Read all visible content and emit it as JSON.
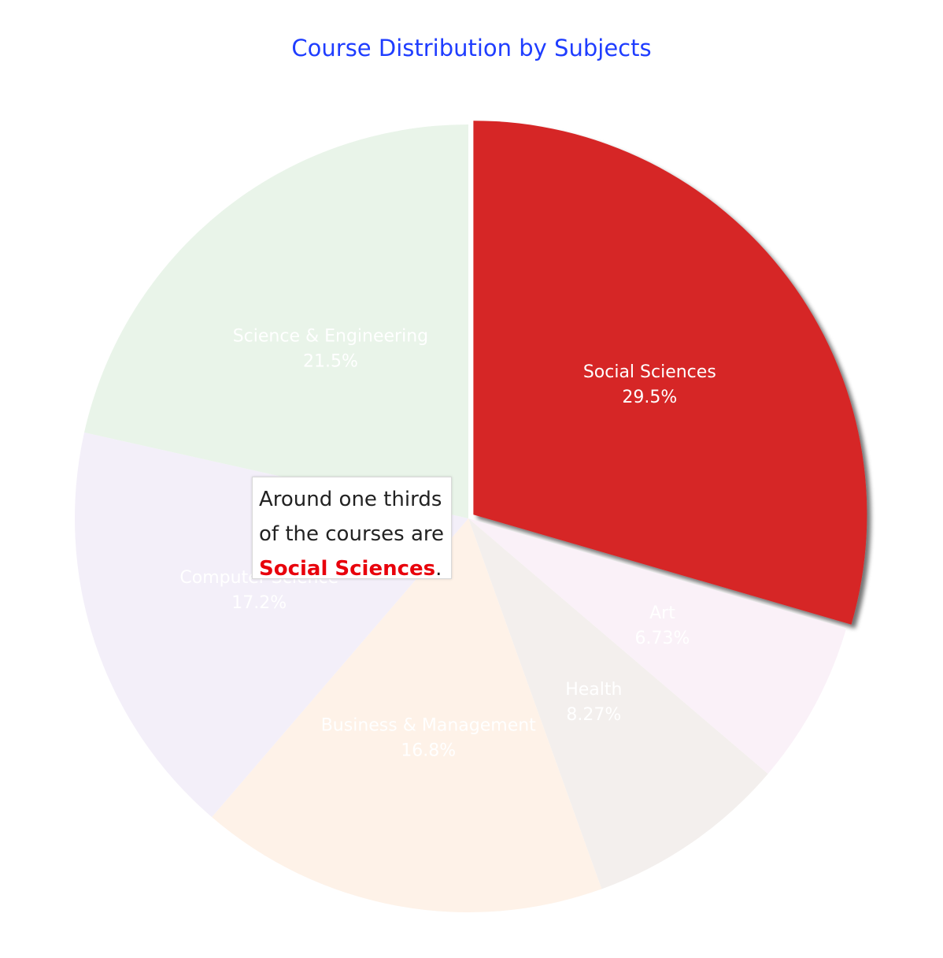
{
  "chart_data": {
    "type": "pie",
    "title": "Course Distribution by Subjects",
    "labels": [
      "Social Sciences",
      "Art",
      "Health",
      "Business & Management",
      "Computer Science",
      "Science & Engineering"
    ],
    "values": [
      29.5,
      6.73,
      8.27,
      16.8,
      17.2,
      21.5
    ],
    "value_labels": [
      "29.5%",
      "6.73%",
      "8.27%",
      "16.8%",
      "17.2%",
      "21.5%"
    ],
    "colors": [
      "#d62728",
      "#faf1f8",
      "#f3efed",
      "#fef2e8",
      "#f3eff9",
      "#e9f4e9"
    ],
    "highlighted": "Social Sciences",
    "start": "12 o'clock, clockwise, highlighted slice pulled out"
  },
  "annotation": {
    "line1": "Around one thirds",
    "line2": "of the courses are",
    "highlight": "Social Sciences",
    "suffix": "."
  }
}
